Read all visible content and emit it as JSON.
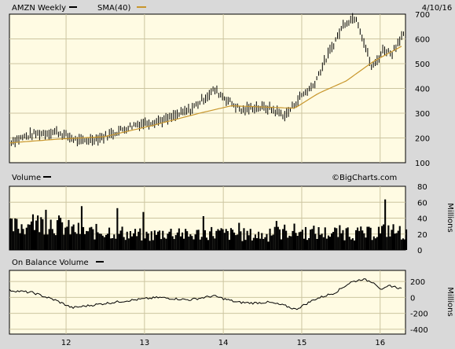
{
  "chart_data": [
    {
      "type": "line",
      "title": "AMZN Weekly",
      "date": "4/10/16",
      "legend": [
        {
          "name": "AMZN Weekly",
          "color": "#000000"
        },
        {
          "name": "SMA(40)",
          "color": "#c8962c"
        }
      ],
      "y_ticks": [
        "100",
        "200",
        "300",
        "400",
        "500",
        "600",
        "700"
      ],
      "ylim": [
        100,
        700
      ],
      "x_ticks": [
        "12",
        "13",
        "14",
        "15",
        "16"
      ],
      "grid": true,
      "price": {
        "t": [
          0,
          0.06,
          0.12,
          0.18,
          0.24,
          0.32,
          0.4,
          0.46,
          0.52,
          0.56,
          0.59,
          0.62,
          0.66,
          0.7,
          0.74,
          0.77,
          0.81,
          0.85,
          0.88,
          0.92,
          0.95,
          0.97,
          0.995
        ],
        "v": [
          185,
          215,
          225,
          185,
          205,
          255,
          275,
          315,
          395,
          345,
          310,
          325,
          320,
          290,
          370,
          410,
          540,
          665,
          690,
          480,
          560,
          540,
          615
        ]
      },
      "sma": {
        "t": [
          0,
          0.12,
          0.24,
          0.36,
          0.48,
          0.56,
          0.64,
          0.72,
          0.78,
          0.85,
          0.92,
          0.99
        ],
        "v": [
          180,
          195,
          205,
          250,
          300,
          330,
          325,
          320,
          380,
          430,
          510,
          570
        ]
      }
    },
    {
      "type": "bar",
      "title": "Volume",
      "watermark": "©BigCharts.com",
      "y_ticks": [
        "0",
        "20",
        "40",
        "60",
        "80"
      ],
      "ylim": [
        0,
        80
      ],
      "y_unit": "Millions",
      "profile": {
        "t": [
          0,
          0.05,
          0.1,
          0.15,
          0.2,
          0.25,
          0.3,
          0.35,
          0.4,
          0.45,
          0.5,
          0.55,
          0.6,
          0.65,
          0.7,
          0.75,
          0.8,
          0.85,
          0.9,
          0.95,
          1.0
        ],
        "v": [
          28,
          32,
          35,
          26,
          22,
          24,
          20,
          18,
          22,
          18,
          22,
          20,
          19,
          18,
          24,
          22,
          21,
          22,
          20,
          26,
          20
        ]
      }
    },
    {
      "type": "line",
      "title": "On Balance Volume",
      "y_ticks": [
        "200",
        "0",
        "-200",
        "-400"
      ],
      "y_tick_values": [
        200,
        0,
        -200,
        -400
      ],
      "ylim": [
        -460,
        340
      ],
      "y_unit": "Millions",
      "series": {
        "t": [
          0,
          0.06,
          0.12,
          0.16,
          0.22,
          0.3,
          0.38,
          0.46,
          0.52,
          0.58,
          0.62,
          0.66,
          0.7,
          0.73,
          0.78,
          0.83,
          0.87,
          0.9,
          0.93,
          0.95,
          0.97,
          1.0
        ],
        "v": [
          90,
          60,
          -40,
          -130,
          -90,
          -40,
          0,
          -30,
          20,
          -60,
          -70,
          -60,
          -100,
          -150,
          -20,
          60,
          190,
          230,
          190,
          90,
          150,
          110
        ]
      }
    }
  ]
}
